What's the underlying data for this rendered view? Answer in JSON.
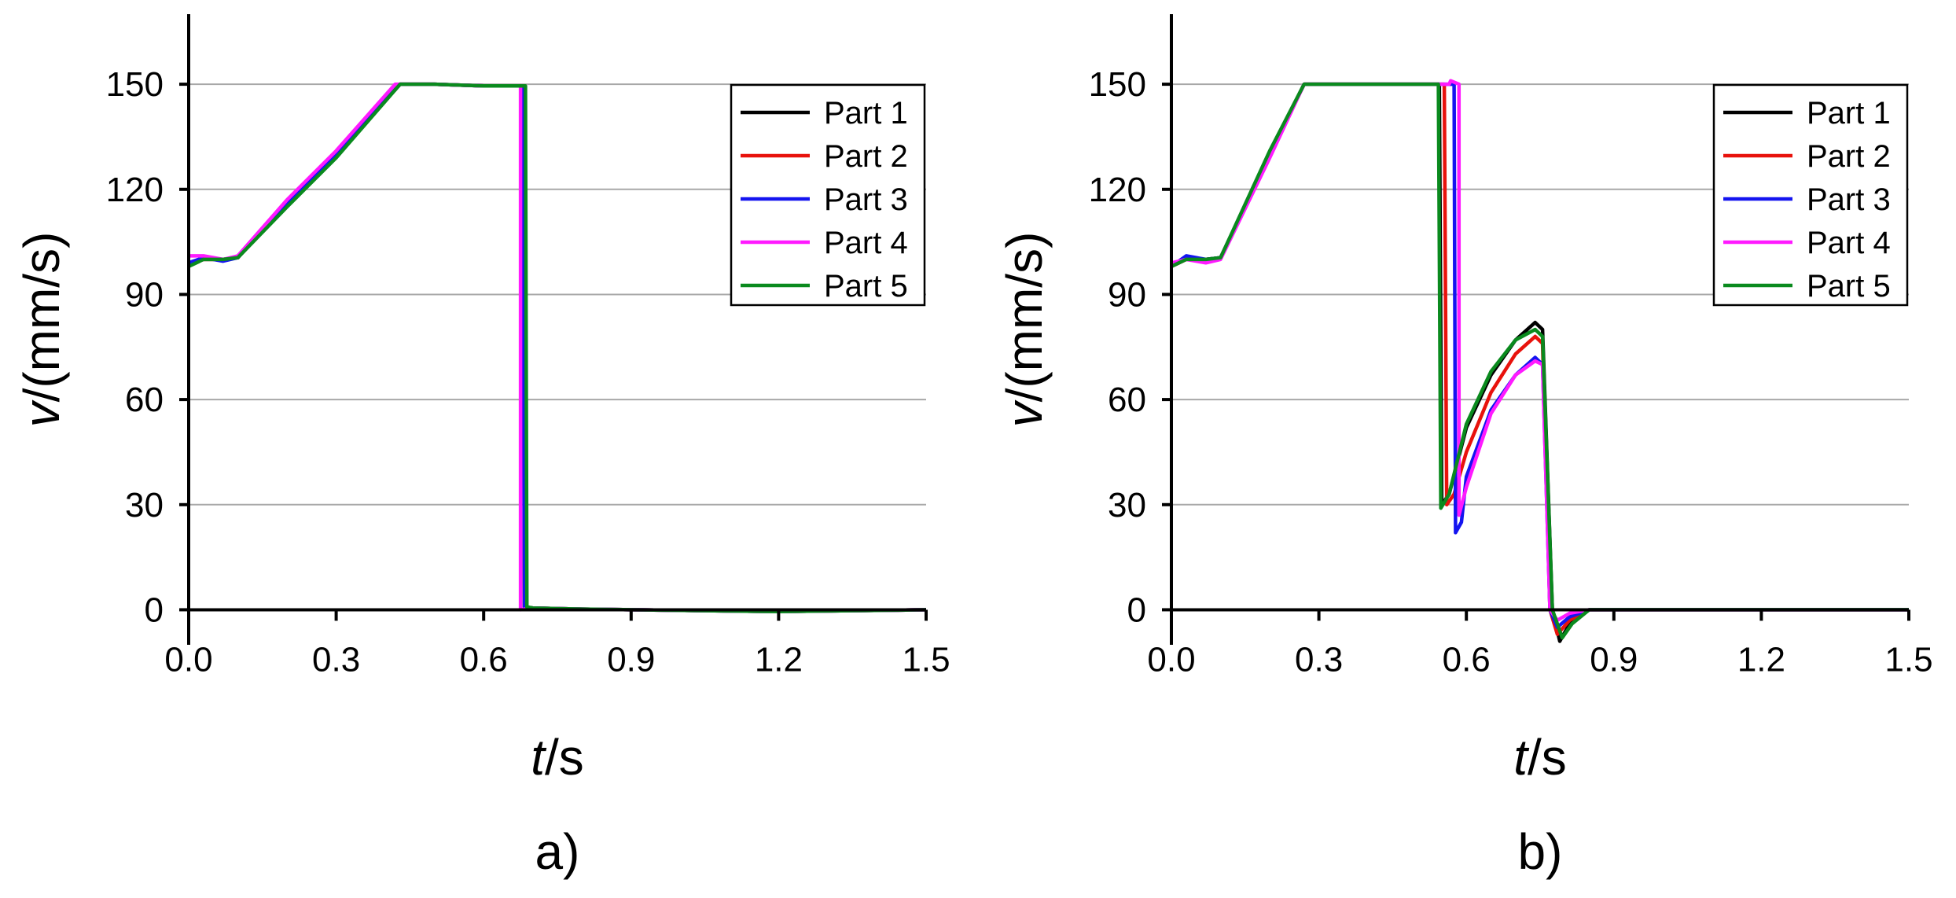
{
  "chart_data": [
    {
      "type": "line",
      "panel_label": "a)",
      "xlabel_italic": "t",
      "xlabel_rest": "/s",
      "ylabel_italic": "v",
      "ylabel_rest": "/(mm/s)",
      "xlim": [
        0,
        1.5
      ],
      "ylim": [
        -10,
        170
      ],
      "xticks": [
        0,
        0.3,
        0.6,
        0.9,
        1.2,
        1.5
      ],
      "xtick_labels": [
        "0.0",
        "0.3",
        "0.6",
        "0.9",
        "1.2",
        "1.5"
      ],
      "yticks": [
        0,
        30,
        60,
        90,
        120,
        150
      ],
      "ytick_labels": [
        "0",
        "30",
        "60",
        "90",
        "120",
        "150"
      ],
      "grid": "horizontal",
      "legend_position": "top-right",
      "series": [
        {
          "name": "Part 1",
          "color": "#000000",
          "points": [
            [
              0,
              99
            ],
            [
              0.03,
              100
            ],
            [
              0.07,
              100
            ],
            [
              0.1,
              100.5
            ],
            [
              0.2,
              116
            ],
            [
              0.3,
              130
            ],
            [
              0.43,
              150
            ],
            [
              0.5,
              150
            ],
            [
              0.6,
              149.5
            ],
            [
              0.68,
              149.5
            ],
            [
              0.683,
              0.8
            ],
            [
              0.7,
              0.5
            ],
            [
              0.8,
              0.2
            ],
            [
              0.9,
              0
            ],
            [
              1.2,
              -0.5
            ],
            [
              1.5,
              0
            ]
          ]
        },
        {
          "name": "Part 2",
          "color": "#e8120c",
          "points": [
            [
              0,
              99
            ],
            [
              0.03,
              100
            ],
            [
              0.07,
              100
            ],
            [
              0.1,
              100.5
            ],
            [
              0.2,
              116
            ],
            [
              0.3,
              130
            ],
            [
              0.43,
              150
            ],
            [
              0.5,
              150
            ],
            [
              0.6,
              149.5
            ],
            [
              0.68,
              149.5
            ],
            [
              0.683,
              0.8
            ],
            [
              0.7,
              0.5
            ],
            [
              0.8,
              0.2
            ],
            [
              0.9,
              0
            ],
            [
              1.2,
              -0.5
            ],
            [
              1.5,
              0
            ]
          ]
        },
        {
          "name": "Part 3",
          "color": "#1414f0",
          "points": [
            [
              0,
              99
            ],
            [
              0.03,
              100.5
            ],
            [
              0.07,
              99.5
            ],
            [
              0.1,
              100.5
            ],
            [
              0.2,
              116
            ],
            [
              0.3,
              130
            ],
            [
              0.43,
              150
            ],
            [
              0.5,
              150
            ],
            [
              0.6,
              149.5
            ],
            [
              0.68,
              149.5
            ],
            [
              0.683,
              0.8
            ],
            [
              0.7,
              0.5
            ],
            [
              0.8,
              0.2
            ],
            [
              0.9,
              0
            ],
            [
              1.2,
              -0.5
            ],
            [
              1.5,
              0
            ]
          ]
        },
        {
          "name": "Part 4",
          "color": "#ff1aff",
          "points": [
            [
              0,
              101
            ],
            [
              0.03,
              101
            ],
            [
              0.07,
              100
            ],
            [
              0.1,
              101
            ],
            [
              0.2,
              117
            ],
            [
              0.3,
              131
            ],
            [
              0.42,
              150
            ],
            [
              0.5,
              150
            ],
            [
              0.6,
              149.5
            ],
            [
              0.675,
              149.5
            ],
            [
              0.675,
              0
            ],
            [
              0.7,
              0.5
            ],
            [
              0.8,
              0.2
            ],
            [
              0.9,
              0
            ],
            [
              1.2,
              -0.5
            ],
            [
              1.5,
              0
            ]
          ]
        },
        {
          "name": "Part 5",
          "color": "#0a8a1e",
          "points": [
            [
              0,
              98
            ],
            [
              0.03,
              100
            ],
            [
              0.07,
              100
            ],
            [
              0.1,
              100.5
            ],
            [
              0.2,
              115
            ],
            [
              0.3,
              129
            ],
            [
              0.43,
              150
            ],
            [
              0.5,
              150
            ],
            [
              0.6,
              149.5
            ],
            [
              0.685,
              149.5
            ],
            [
              0.688,
              0.8
            ],
            [
              0.7,
              0.5
            ],
            [
              0.8,
              0.2
            ],
            [
              0.9,
              0
            ],
            [
              1.2,
              -0.5
            ],
            [
              1.5,
              0
            ]
          ]
        }
      ]
    },
    {
      "type": "line",
      "panel_label": "b)",
      "xlabel_italic": "t",
      "xlabel_rest": "/s",
      "ylabel_italic": "v",
      "ylabel_rest": "/(mm/s)",
      "xlim": [
        0,
        1.5
      ],
      "ylim": [
        -10,
        170
      ],
      "xticks": [
        0,
        0.3,
        0.6,
        0.9,
        1.2,
        1.5
      ],
      "xtick_labels": [
        "0.0",
        "0.3",
        "0.6",
        "0.9",
        "1.2",
        "1.5"
      ],
      "yticks": [
        0,
        30,
        60,
        90,
        120,
        150
      ],
      "ytick_labels": [
        "0",
        "30",
        "60",
        "90",
        "120",
        "150"
      ],
      "grid": "horizontal",
      "legend_position": "top-right",
      "series": [
        {
          "name": "Part 1",
          "color": "#000000",
          "points": [
            [
              0,
              98
            ],
            [
              0.03,
              100
            ],
            [
              0.07,
              100
            ],
            [
              0.1,
              100.5
            ],
            [
              0.2,
              130
            ],
            [
              0.27,
              150
            ],
            [
              0.35,
              150
            ],
            [
              0.45,
              150
            ],
            [
              0.545,
              150
            ],
            [
              0.55,
              30
            ],
            [
              0.565,
              33
            ],
            [
              0.6,
              52
            ],
            [
              0.65,
              67
            ],
            [
              0.7,
              77
            ],
            [
              0.74,
              82
            ],
            [
              0.755,
              80
            ],
            [
              0.775,
              0
            ],
            [
              0.79,
              -9
            ],
            [
              0.81,
              -4
            ],
            [
              0.85,
              0
            ],
            [
              1.1,
              0
            ],
            [
              1.5,
              0
            ]
          ]
        },
        {
          "name": "Part 2",
          "color": "#e8120c",
          "points": [
            [
              0,
              98
            ],
            [
              0.03,
              100
            ],
            [
              0.07,
              100
            ],
            [
              0.1,
              100.5
            ],
            [
              0.2,
              130
            ],
            [
              0.27,
              150
            ],
            [
              0.35,
              150
            ],
            [
              0.45,
              150
            ],
            [
              0.555,
              150
            ],
            [
              0.56,
              30
            ],
            [
              0.575,
              33
            ],
            [
              0.6,
              45
            ],
            [
              0.65,
              62
            ],
            [
              0.7,
              73
            ],
            [
              0.74,
              78
            ],
            [
              0.755,
              76
            ],
            [
              0.77,
              0
            ],
            [
              0.785,
              -7
            ],
            [
              0.81,
              -3
            ],
            [
              0.85,
              0
            ],
            [
              1.1,
              0
            ],
            [
              1.5,
              0
            ]
          ]
        },
        {
          "name": "Part 3",
          "color": "#1414f0",
          "points": [
            [
              0,
              98
            ],
            [
              0.03,
              101
            ],
            [
              0.07,
              100
            ],
            [
              0.1,
              100.5
            ],
            [
              0.2,
              130
            ],
            [
              0.27,
              150
            ],
            [
              0.35,
              150
            ],
            [
              0.45,
              150
            ],
            [
              0.575,
              150
            ],
            [
              0.578,
              22
            ],
            [
              0.59,
              25
            ],
            [
              0.6,
              38
            ],
            [
              0.65,
              57
            ],
            [
              0.7,
              67
            ],
            [
              0.74,
              72
            ],
            [
              0.755,
              70
            ],
            [
              0.77,
              0
            ],
            [
              0.785,
              -5
            ],
            [
              0.81,
              -2
            ],
            [
              0.85,
              0
            ],
            [
              1.1,
              0
            ],
            [
              1.5,
              0
            ]
          ]
        },
        {
          "name": "Part 4",
          "color": "#ff1aff",
          "points": [
            [
              0,
              99
            ],
            [
              0.03,
              100
            ],
            [
              0.07,
              99
            ],
            [
              0.1,
              100
            ],
            [
              0.2,
              129
            ],
            [
              0.27,
              150
            ],
            [
              0.35,
              150
            ],
            [
              0.45,
              150
            ],
            [
              0.565,
              150
            ],
            [
              0.568,
              151
            ],
            [
              0.585,
              150
            ],
            [
              0.585,
              27
            ],
            [
              0.6,
              35
            ],
            [
              0.65,
              56
            ],
            [
              0.7,
              67
            ],
            [
              0.74,
              71
            ],
            [
              0.755,
              70
            ],
            [
              0.77,
              0
            ],
            [
              0.785,
              -3
            ],
            [
              0.81,
              -1
            ],
            [
              0.85,
              0
            ],
            [
              1.1,
              0
            ],
            [
              1.5,
              0
            ]
          ]
        },
        {
          "name": "Part 5",
          "color": "#0a8a1e",
          "points": [
            [
              0,
              98
            ],
            [
              0.03,
              100
            ],
            [
              0.07,
              100
            ],
            [
              0.1,
              100.5
            ],
            [
              0.2,
              131
            ],
            [
              0.27,
              150
            ],
            [
              0.35,
              150
            ],
            [
              0.45,
              150
            ],
            [
              0.543,
              150
            ],
            [
              0.548,
              29
            ],
            [
              0.565,
              33
            ],
            [
              0.6,
              53
            ],
            [
              0.65,
              68
            ],
            [
              0.7,
              77
            ],
            [
              0.74,
              80
            ],
            [
              0.755,
              78
            ],
            [
              0.775,
              0
            ],
            [
              0.795,
              -8
            ],
            [
              0.815,
              -4
            ],
            [
              0.85,
              0
            ],
            [
              1.1,
              0
            ],
            [
              1.5,
              0
            ]
          ]
        }
      ]
    }
  ]
}
